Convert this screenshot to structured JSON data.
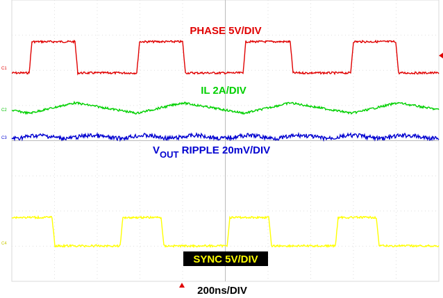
{
  "screen": {
    "labels": {
      "phase": "PHASE 5V/DIV",
      "il": "IL 2A/DIV",
      "vout_v": "V",
      "vout_sub": "OUT",
      "vout_rest": " RIPPLE 20mV/DIV",
      "sync": "SYNC 5V/DIV",
      "timebase": "200ns/DIV"
    },
    "markers": {
      "c1": "C1",
      "c2": "C2",
      "c3": "C3",
      "c4": "C4"
    }
  }
}
